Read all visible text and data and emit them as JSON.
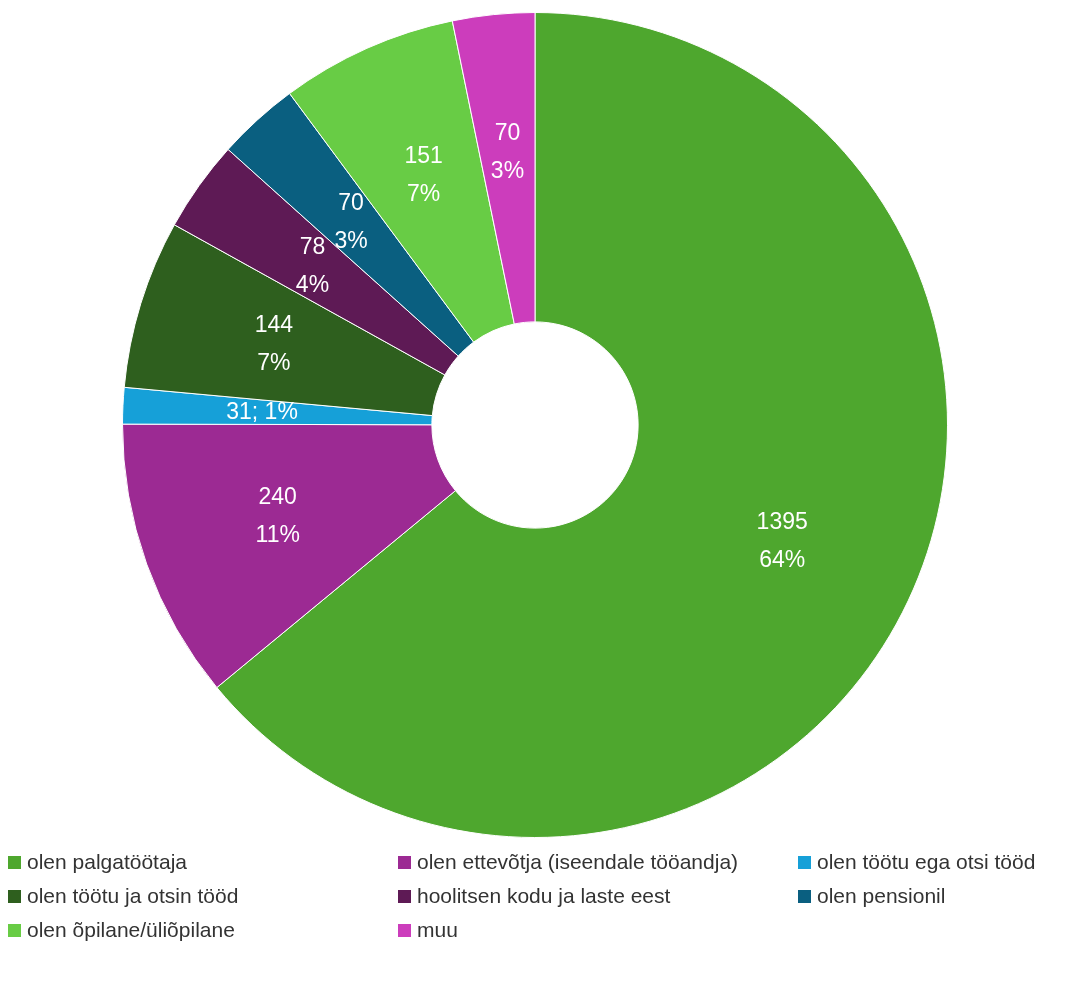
{
  "chart_data": {
    "type": "donut",
    "categories": [
      "olen palgatöötaja",
      "olen ettevõtja (iseendale tööandja)",
      "olen töötu ega otsi tööd",
      "olen töötu ja otsin tööd",
      "hoolitsen kodu ja laste eest",
      "olen pensionil",
      "olen õpilane/üliõpilane",
      "muu"
    ],
    "values": [
      1395,
      240,
      31,
      144,
      78,
      70,
      151,
      70
    ],
    "value_labels": [
      "1395\n64%",
      "240\n11%",
      "31; 1%",
      "144\n7%",
      "78\n4%",
      "70\n3%",
      "151\n7%",
      "70\n3%"
    ],
    "colors": [
      "#4ea72e",
      "#9c2a93",
      "#16a0d8",
      "#2e5f1e",
      "#5e1a55",
      "#0a5f80",
      "#68cc45",
      "#cc3dbc"
    ],
    "legend": "bottom"
  }
}
